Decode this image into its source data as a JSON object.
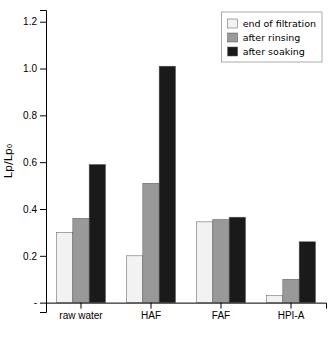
{
  "chart_data": {
    "type": "bar",
    "categories": [
      "raw water",
      "HAF",
      "FAF",
      "HPI-A"
    ],
    "series": [
      {
        "name": "end of filtration",
        "color": "#f2f2f2",
        "values": [
          0.3,
          0.2,
          0.345,
          0.03
        ]
      },
      {
        "name": "after rinsing",
        "color": "#999999",
        "values": [
          0.36,
          0.51,
          0.355,
          0.1
        ]
      },
      {
        "name": "after soaking",
        "color": "#1a1a1a",
        "values": [
          0.59,
          1.01,
          0.365,
          0.26
        ]
      }
    ],
    "y_label": "Lp/Lp₀",
    "ylim": [
      -0.04,
      1.25
    ],
    "yticks": [
      {
        "value": 0.0,
        "label": "-"
      },
      0.2,
      0.4,
      0.6,
      0.8,
      {
        "value": 1.0,
        "label": "1.0"
      },
      1.2
    ],
    "legend": "upper-right",
    "grid": false
  }
}
